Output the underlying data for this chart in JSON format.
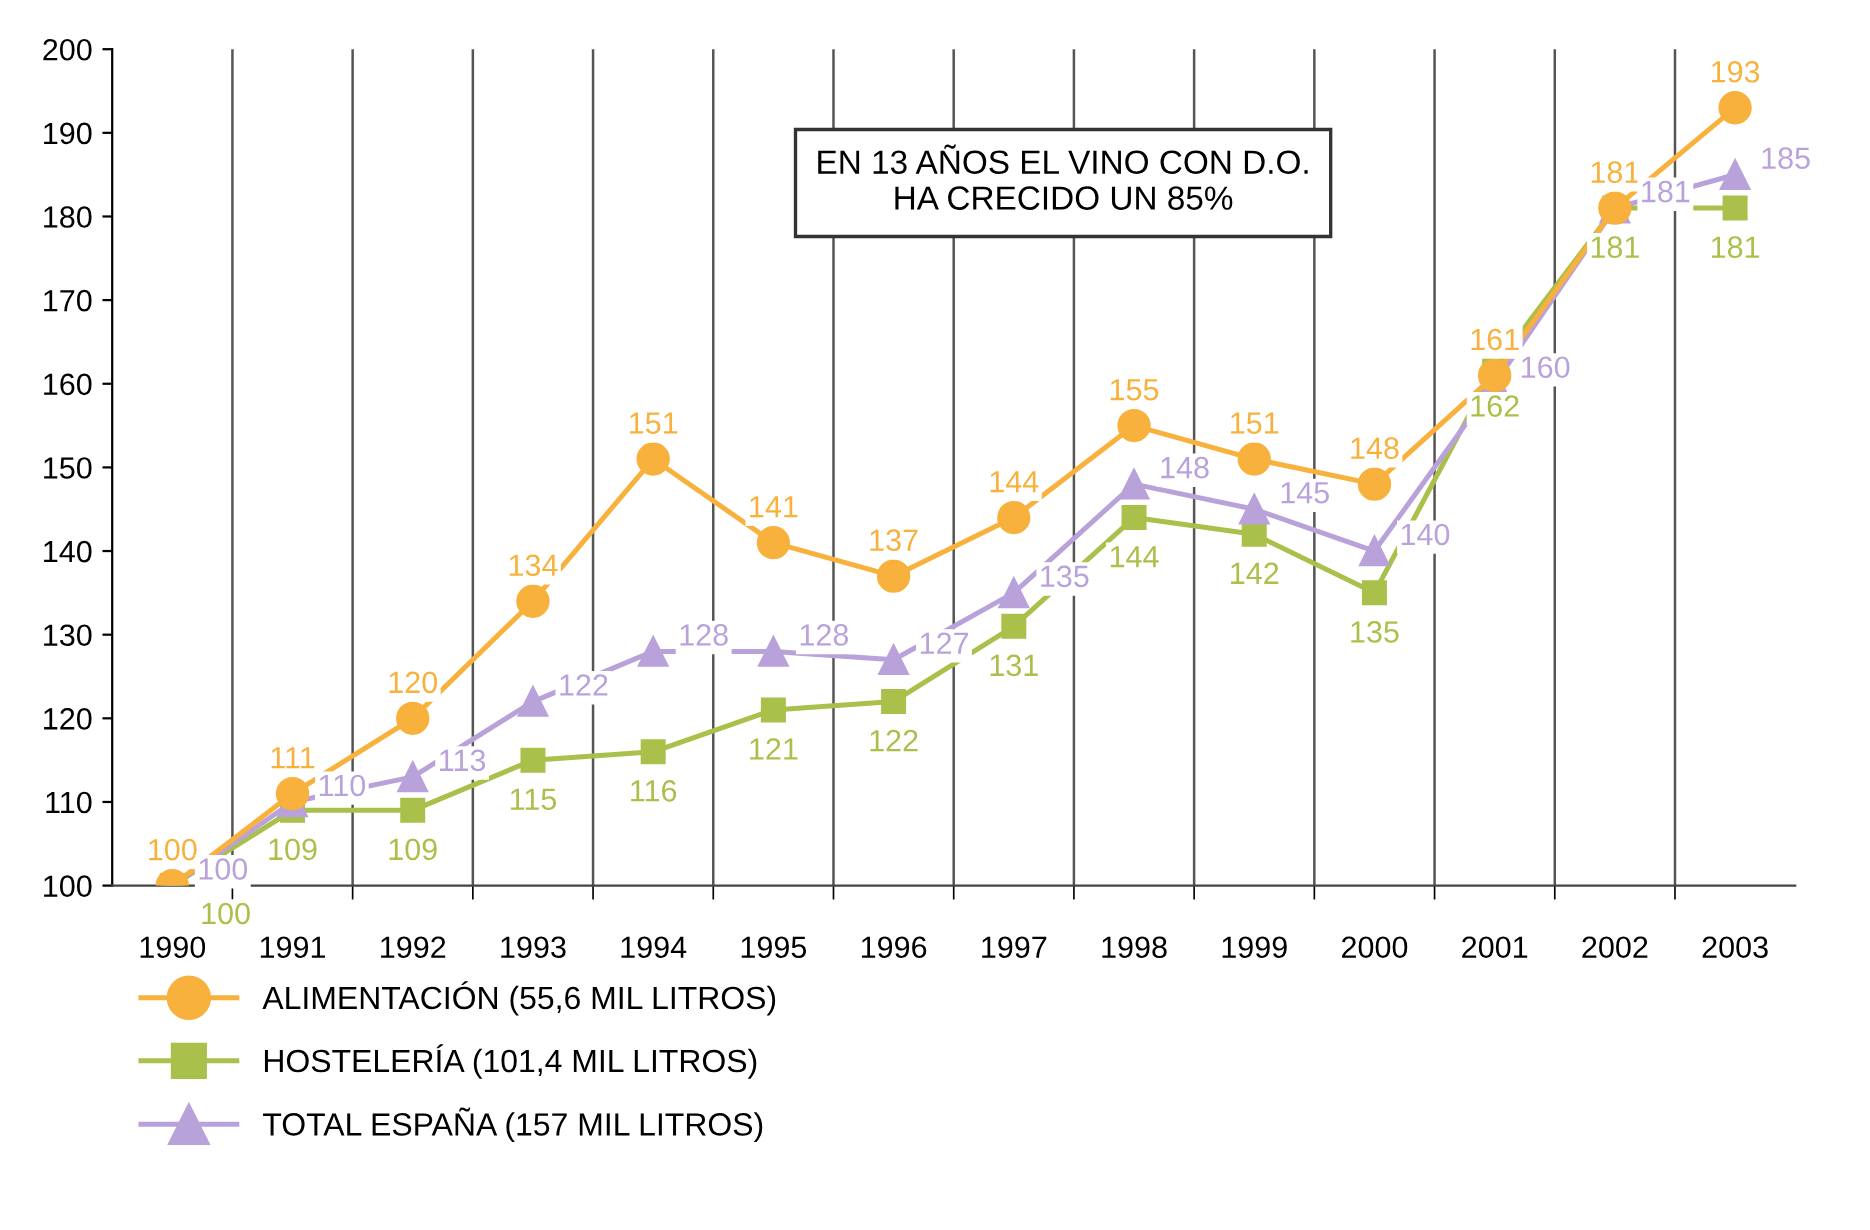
{
  "chart_data": {
    "type": "line",
    "categories": [
      "1990",
      "1991",
      "1992",
      "1993",
      "1994",
      "1995",
      "1996",
      "1997",
      "1998",
      "1999",
      "2000",
      "2001",
      "2002",
      "2003"
    ],
    "series": [
      {
        "name": "ALIMENTACIÓN (55,6 MIL LITROS)",
        "color": "#f7b13c",
        "marker": "circle",
        "values": [
          100,
          111,
          120,
          134,
          151,
          141,
          137,
          144,
          155,
          151,
          148,
          161,
          181,
          193
        ]
      },
      {
        "name": "HOSTELERÍA (101,4 MIL LITROS)",
        "color": "#a9c04a",
        "marker": "square",
        "values": [
          100,
          109,
          109,
          115,
          116,
          121,
          122,
          131,
          144,
          142,
          135,
          162,
          181,
          181
        ]
      },
      {
        "name": "TOTAL ESPAÑA (157 MIL LITROS)",
        "color": "#b9a2da",
        "marker": "triangle",
        "values": [
          100,
          110,
          113,
          122,
          128,
          128,
          127,
          135,
          148,
          145,
          140,
          160,
          181,
          185
        ]
      }
    ],
    "ylim": [
      100,
      200
    ],
    "yticks": [
      100,
      110,
      120,
      130,
      140,
      150,
      160,
      170,
      180,
      190,
      200
    ],
    "grid": "x",
    "legend": "bottom left",
    "data_labels": true,
    "annotations": [
      "EN 13 AÑOS EL VINO CON D.O.\nHA CRECIDO UN 85%"
    ]
  }
}
